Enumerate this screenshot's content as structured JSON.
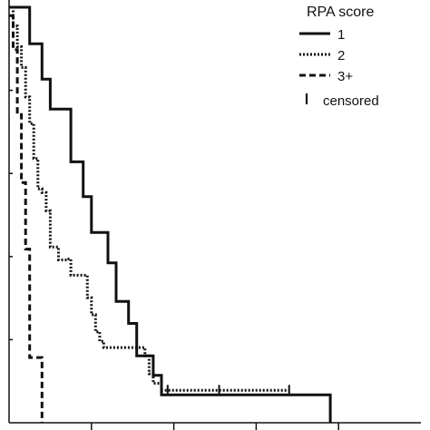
{
  "chart_data": {
    "type": "line",
    "subtype": "kaplan-meier-step",
    "title": "",
    "xlabel": "",
    "ylabel": "",
    "xlim": [
      0,
      100
    ],
    "ylim": [
      0,
      1
    ],
    "x_ticks": [
      20,
      40,
      60,
      80
    ],
    "y_ticks": [
      0.2,
      0.4,
      0.6,
      0.8
    ],
    "grid": false,
    "legend": {
      "title": "RPA score",
      "position": "top-right",
      "censored_label": "censored"
    },
    "series": [
      {
        "name": "1",
        "style": "solid",
        "points": [
          [
            0,
            1.0
          ],
          [
            5,
            1.0
          ],
          [
            5,
            0.912
          ],
          [
            8,
            0.912
          ],
          [
            8,
            0.827
          ],
          [
            10,
            0.827
          ],
          [
            10,
            0.755
          ],
          [
            15,
            0.755
          ],
          [
            15,
            0.628
          ],
          [
            18,
            0.628
          ],
          [
            18,
            0.544
          ],
          [
            20,
            0.544
          ],
          [
            20,
            0.458
          ],
          [
            24,
            0.458
          ],
          [
            24,
            0.385
          ],
          [
            26,
            0.385
          ],
          [
            26,
            0.292
          ],
          [
            29,
            0.292
          ],
          [
            29,
            0.239
          ],
          [
            31,
            0.239
          ],
          [
            31,
            0.161
          ],
          [
            35,
            0.161
          ],
          [
            35,
            0.114
          ],
          [
            37,
            0.114
          ],
          [
            37,
            0.067
          ],
          [
            78,
            0.067
          ],
          [
            78,
            0
          ]
        ],
        "censored": []
      },
      {
        "name": "2",
        "style": "dotted",
        "points": [
          [
            0,
            1.0
          ],
          [
            1,
            1.0
          ],
          [
            1,
            0.955
          ],
          [
            2,
            0.955
          ],
          [
            2,
            0.905
          ],
          [
            3,
            0.905
          ],
          [
            3,
            0.855
          ],
          [
            4,
            0.855
          ],
          [
            4,
            0.784
          ],
          [
            5,
            0.784
          ],
          [
            5,
            0.72
          ],
          [
            6,
            0.72
          ],
          [
            6,
            0.636
          ],
          [
            7,
            0.636
          ],
          [
            7,
            0.563
          ],
          [
            8,
            0.563
          ],
          [
            8,
            0.554
          ],
          [
            9,
            0.554
          ],
          [
            9,
            0.51
          ],
          [
            10,
            0.51
          ],
          [
            10,
            0.423
          ],
          [
            12,
            0.423
          ],
          [
            12,
            0.392
          ],
          [
            14,
            0.392
          ],
          [
            14,
            0.394
          ],
          [
            15,
            0.394
          ],
          [
            15,
            0.355
          ],
          [
            19,
            0.355
          ],
          [
            19,
            0.301
          ],
          [
            20,
            0.301
          ],
          [
            20,
            0.26
          ],
          [
            21,
            0.26
          ],
          [
            21,
            0.219
          ],
          [
            22,
            0.219
          ],
          [
            22,
            0.196
          ],
          [
            23,
            0.196
          ],
          [
            23,
            0.181
          ],
          [
            33,
            0.181
          ],
          [
            33,
            0.161
          ],
          [
            34,
            0.161
          ],
          [
            34,
            0.118
          ],
          [
            35,
            0.118
          ],
          [
            35,
            0.095
          ],
          [
            37,
            0.095
          ],
          [
            37,
            0.078
          ],
          [
            68,
            0.078
          ]
        ],
        "censored": [
          [
            38.5,
            0.078
          ],
          [
            51,
            0.078
          ],
          [
            68,
            0.078
          ]
        ]
      },
      {
        "name": "3+",
        "style": "dashed",
        "points": [
          [
            0,
            0.98
          ],
          [
            1,
            0.98
          ],
          [
            1,
            0.898
          ],
          [
            2,
            0.898
          ],
          [
            2,
            0.742
          ],
          [
            3,
            0.742
          ],
          [
            3,
            0.578
          ],
          [
            4,
            0.578
          ],
          [
            4,
            0.418
          ],
          [
            5,
            0.418
          ],
          [
            5,
            0.157
          ],
          [
            8,
            0.157
          ],
          [
            8,
            0
          ]
        ],
        "censored": []
      }
    ]
  }
}
